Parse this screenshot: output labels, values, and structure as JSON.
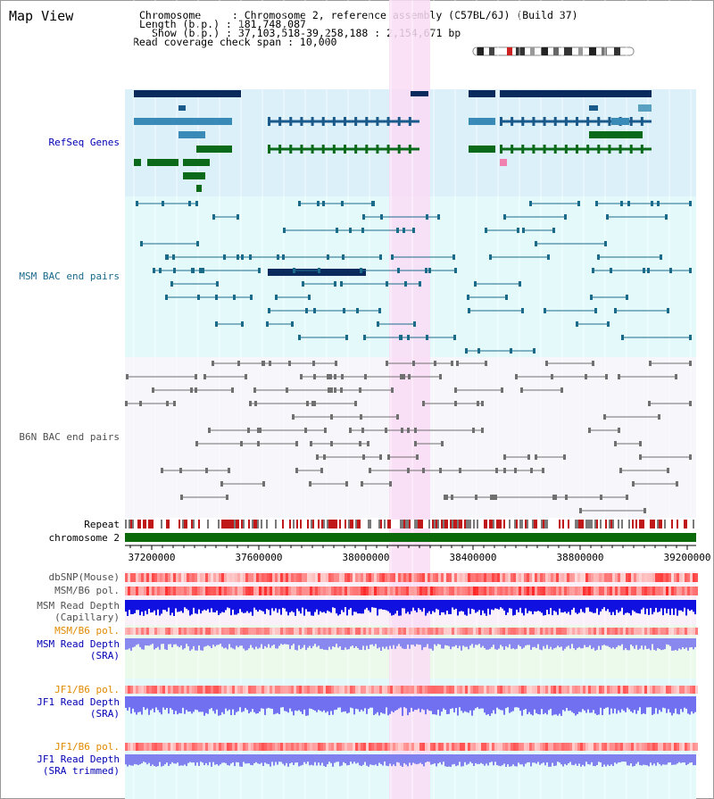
{
  "page_title": "Map View",
  "header": {
    "chromosome": "Chromosome     : Chromosome 2, reference assembly (C57BL/6J) (Build 37)",
    "length": "Length (b.p.) : 181,748,087",
    "show": "Show (b.p.) : 37,103,518-39,258,188 : 2,154,671 bp",
    "coverage": "Read coverage check span : 10,000"
  },
  "tracks": {
    "refseq": "RefSeq Genes",
    "msm_bac": "MSM BAC end pairs",
    "b6n_bac": "B6N BAC end pairs",
    "repeat": "Repeat",
    "chromosome": "chromosome 2",
    "dbsnp": "dbSNP(Mouse)",
    "msm_b6_pol": "MSM/B6 pol.",
    "msm_depth_cap_1": "MSM Read Depth",
    "msm_depth_cap_2": "(Capillary)",
    "msm_b6_pol_2": "MSM/B6 pol.",
    "msm_depth_sra_1": "MSM Read Depth",
    "msm_depth_sra_2": "(SRA)",
    "jf1_b6_pol": "JF1/B6 pol.",
    "jf1_depth_sra_1": "JF1 Read Depth",
    "jf1_depth_sra_2": "(SRA)",
    "jf1_b6_pol_2": "JF1/B6 pol.",
    "jf1_depth_trim_1": "JF1 Read Depth",
    "jf1_depth_trim_2": "(SRA trimmed)"
  },
  "axis": {
    "ticks": [
      "37200000",
      "37600000",
      "38000000",
      "38400000",
      "38800000",
      "39200000"
    ]
  },
  "colors": {
    "refseq_bg": "#dcf0fa",
    "msm_bg": "#e4fafa",
    "b6n_bg": "#f6f6fb",
    "highlight": "#fadcf4",
    "label_blue": "#0000b4",
    "label_teal": "#1a6a8a",
    "label_gray": "#505050",
    "label_orange": "#e08a00"
  }
}
